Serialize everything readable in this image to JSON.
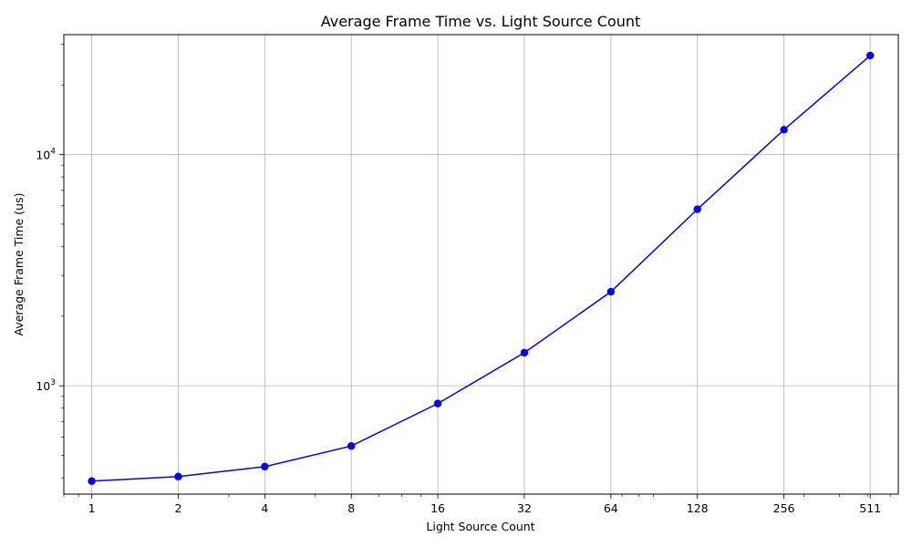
{
  "chart_data": {
    "type": "line",
    "title": "Average Frame Time vs. Light Source Count",
    "xlabel": "Light Source Count",
    "ylabel": "Average Frame Time (us)",
    "x_scale": "log2",
    "y_scale": "log10",
    "xlim": [
      0.8,
      640
    ],
    "ylim": [
      340,
      33000
    ],
    "x_ticks": [
      1,
      2,
      4,
      8,
      16,
      32,
      64,
      128,
      256,
      511
    ],
    "x_tick_labels": [
      "1",
      "2",
      "4",
      "8",
      "16",
      "32",
      "64",
      "128",
      "256",
      "511"
    ],
    "y_ticks": [
      {
        "base": "10",
        "exp": "3",
        "value": 1000
      },
      {
        "base": "10",
        "exp": "4",
        "value": 10000
      }
    ],
    "grid": true,
    "series": [
      {
        "color": "#0000ff",
        "marker": "circle",
        "x": [
          1,
          2,
          4,
          8,
          16,
          32,
          64,
          128,
          256,
          511
        ],
        "y": [
          387,
          405,
          447,
          549,
          838,
          1390,
          2550,
          5800,
          12800,
          26800
        ]
      }
    ]
  }
}
